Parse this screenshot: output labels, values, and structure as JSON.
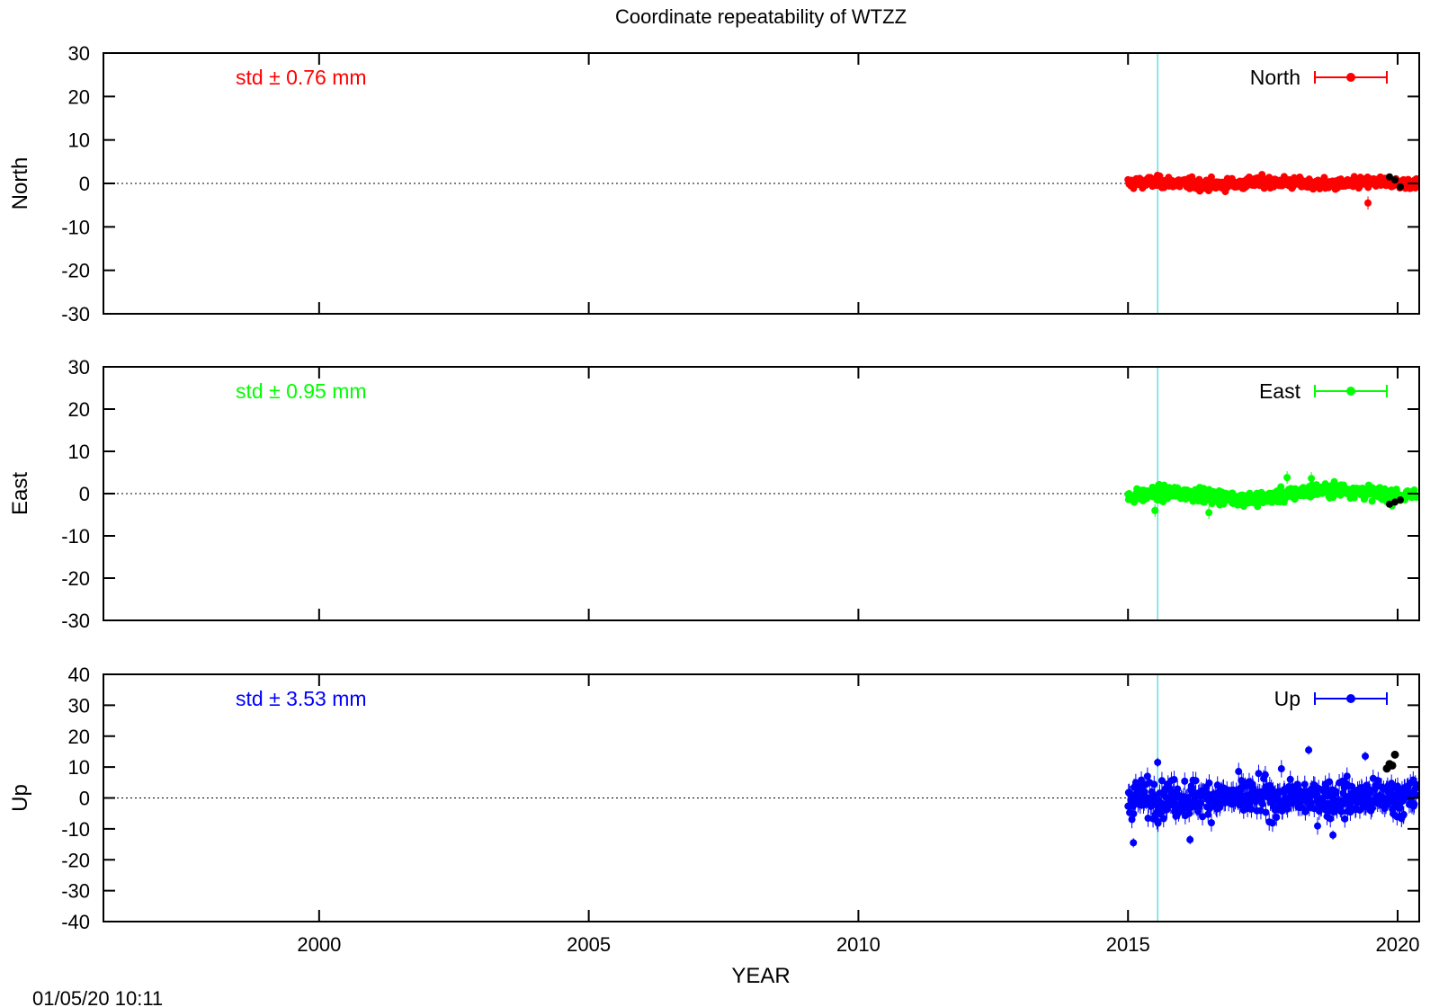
{
  "title": "Coordinate repeatability of WTZZ",
  "timestamp": "01/05/20 10:11",
  "colors": {
    "north": "#ff0000",
    "east": "#00ff00",
    "up": "#0000ff",
    "event_line": "#66e0e0",
    "axis": "#000000",
    "overlay_points": "#000000"
  },
  "chart_data": {
    "type": "scatter",
    "xlabel": "YEAR",
    "xlim": [
      1996.0,
      2020.4
    ],
    "x_ticks": [
      2000,
      2005,
      2010,
      2015,
      2020
    ],
    "x_tick_labels": [
      "2000",
      "2005",
      "2010",
      "2015",
      "2020"
    ],
    "event_line_x": 2015.55,
    "grid": false,
    "zero_line": true,
    "legend_placement": "top-right",
    "panels": [
      {
        "key": "north",
        "ylabel": "North",
        "legend": "North",
        "std_label": "std ± 0.76 mm",
        "ylim": [
          -30,
          30
        ],
        "y_ticks": [
          30,
          20,
          10,
          0,
          -10,
          -20,
          -30
        ],
        "y_tick_labels": [
          "30",
          "20",
          "10",
          "0",
          "-10",
          "-20",
          "-30"
        ],
        "data_start": 2015.0,
        "data_end": 2020.35,
        "std": 0.76,
        "outliers": [
          [
            2019.45,
            -4.5
          ]
        ]
      },
      {
        "key": "east",
        "ylabel": "East",
        "legend": "East",
        "std_label": "std ± 0.95 mm",
        "ylim": [
          -30,
          30
        ],
        "y_ticks": [
          30,
          20,
          10,
          0,
          -10,
          -20,
          -30
        ],
        "y_tick_labels": [
          "30",
          "20",
          "10",
          "0",
          "-10",
          "-20",
          "-30"
        ],
        "data_start": 2015.0,
        "data_end": 2020.35,
        "std": 0.95,
        "outliers": [
          [
            2015.5,
            -4.0
          ],
          [
            2016.5,
            -4.5
          ],
          [
            2017.95,
            3.8
          ],
          [
            2018.4,
            3.6
          ]
        ]
      },
      {
        "key": "up",
        "ylabel": "Up",
        "legend": "Up",
        "std_label": "std ± 3.53 mm",
        "ylim": [
          -40,
          40
        ],
        "y_ticks": [
          40,
          30,
          20,
          10,
          0,
          -10,
          -20,
          -30,
          -40
        ],
        "y_tick_labels": [
          "40",
          "30",
          "20",
          "10",
          "0",
          "-10",
          "-20",
          "-30",
          "-40"
        ],
        "data_start": 2015.0,
        "data_end": 2020.35,
        "std": 3.53,
        "outliers": [
          [
            2015.1,
            -14.5
          ],
          [
            2016.15,
            -13.5
          ],
          [
            2018.35,
            15.5
          ],
          [
            2019.4,
            13.5
          ],
          [
            2018.8,
            -12.0
          ],
          [
            2015.55,
            11.5
          ]
        ],
        "overlay": [
          [
            2019.8,
            9.5
          ],
          [
            2019.9,
            10.5
          ],
          [
            2019.95,
            14.0
          ],
          [
            2019.85,
            11.0
          ]
        ]
      }
    ]
  }
}
